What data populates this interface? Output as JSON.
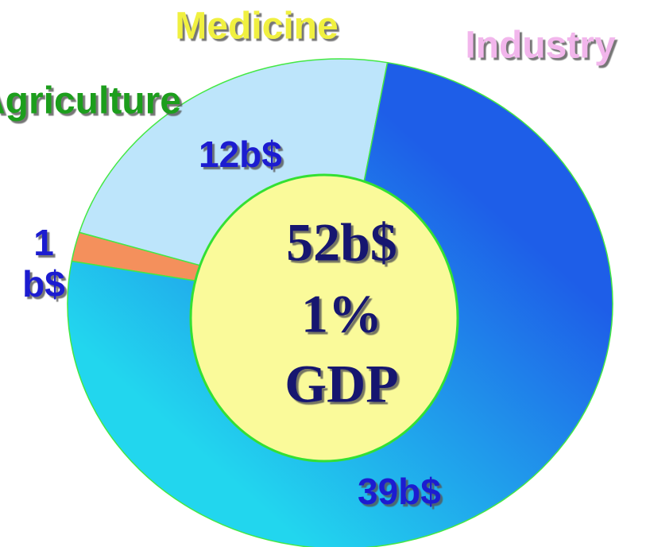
{
  "chart_data": {
    "type": "donut",
    "categories": [
      "Medicine",
      "Agriculture",
      "Industry"
    ],
    "values": [
      12,
      1,
      39
    ],
    "value_labels": [
      "12b$",
      "1 b$",
      "39b$"
    ],
    "colors": [
      "#bde5fb",
      "#f4905c",
      "#1e5ee8"
    ],
    "label_colors": [
      "#f0f040",
      "#1f9e1f",
      "#f2b6ec"
    ],
    "value_label_color": "#1a1ad0",
    "center_labels": [
      "52b$",
      "1%",
      "GDP"
    ],
    "center_color": "#fafa9a"
  }
}
